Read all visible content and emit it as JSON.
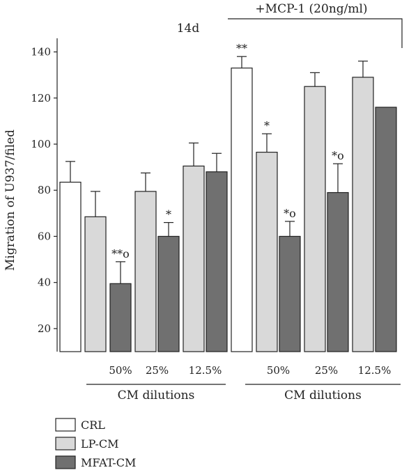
{
  "chart_data": {
    "type": "bar",
    "title": "",
    "ylabel": "Migration of U937/filed",
    "ylim": [
      10,
      145
    ],
    "yticks": [
      20,
      40,
      60,
      80,
      100,
      120,
      140
    ],
    "header_left": "14d",
    "header_right": "+MCP-1 (20ng/ml)",
    "groups": [
      {
        "label": "",
        "bars": [
          {
            "series": "CRL",
            "value": 83.5,
            "err": 9,
            "sig": ""
          }
        ]
      },
      {
        "label": "",
        "bars": [
          {
            "series": "LP-CM",
            "value": 68.5,
            "err": 11,
            "sig": ""
          }
        ]
      },
      {
        "label": "50%",
        "bars": [
          {
            "series": "MFAT-CM",
            "value": 39.5,
            "err": 9.5,
            "sig": "**o"
          }
        ]
      },
      {
        "label": "25%",
        "bars": [
          {
            "series": "LP-CM",
            "value": 79.5,
            "err": 8,
            "sig": ""
          },
          {
            "series": "MFAT-CM",
            "value": 60,
            "err": 6,
            "sig": "*"
          }
        ]
      },
      {
        "label": "12.5%",
        "bars": [
          {
            "series": "LP-CM",
            "value": 90.5,
            "err": 10,
            "sig": ""
          },
          {
            "series": "MFAT-CM",
            "value": 88,
            "err": 8,
            "sig": ""
          }
        ]
      },
      {
        "label": "",
        "bars": [
          {
            "series": "CRL",
            "value": 133,
            "err": 5,
            "sig": "**"
          }
        ]
      },
      {
        "label": "50%",
        "bars": [
          {
            "series": "LP-CM",
            "value": 96.5,
            "err": 8,
            "sig": "*"
          },
          {
            "series": "MFAT-CM",
            "value": 60,
            "err": 6.5,
            "sig": "*o"
          }
        ]
      },
      {
        "label": "25%",
        "bars": [
          {
            "series": "LP-CM",
            "value": 125,
            "err": 6,
            "sig": ""
          },
          {
            "series": "MFAT-CM",
            "value": 79,
            "err": 12.5,
            "sig": "*o"
          }
        ]
      },
      {
        "label": "12.5%",
        "bars": [
          {
            "series": "LP-CM",
            "value": 129,
            "err": 7,
            "sig": ""
          },
          {
            "series": "MFAT-CM",
            "value": 116,
            "err": 0,
            "sig": ""
          }
        ]
      }
    ],
    "dilution_label": "CM dilutions",
    "series": [
      {
        "name": "CRL",
        "color": "#ffffff"
      },
      {
        "name": "LP-CM",
        "color": "#d9d9d9"
      },
      {
        "name": "MFAT-CM",
        "color": "#707070"
      }
    ],
    "legend_position": "bottom-left",
    "grid": false
  }
}
